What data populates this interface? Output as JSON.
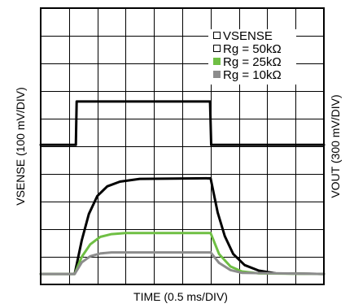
{
  "chart_data": {
    "type": "line",
    "xlabel": "TIME (0.5 ms/DIV)",
    "ylabel_left": "VSENSE (100 mV/DIV)",
    "ylabel_right": "VOUT (300 mV/DIV)",
    "x_divisions": 10,
    "y_divisions": 10,
    "xlim": [
      0,
      10
    ],
    "ylim": [
      0,
      10
    ],
    "grid": true,
    "legend_position": "top-right",
    "series": [
      {
        "name": "VSENSE",
        "color": "#000000",
        "width": 3,
        "legend_marker": "hollow",
        "x": [
          0,
          1.24,
          1.27,
          5.98,
          6.02,
          10
        ],
        "y": [
          5.05,
          5.05,
          6.62,
          6.62,
          5.05,
          5.05
        ]
      },
      {
        "name": "Rg = 50kΩ",
        "color": "#000000",
        "width": 3,
        "legend_marker": "hollow",
        "x": [
          0,
          1.2,
          1.45,
          1.7,
          2.0,
          2.35,
          2.8,
          3.5,
          6.0,
          6.25,
          6.5,
          6.8,
          7.2,
          7.7,
          8.3,
          10
        ],
        "y": [
          0.38,
          0.38,
          1.6,
          2.55,
          3.2,
          3.55,
          3.72,
          3.82,
          3.84,
          2.6,
          1.75,
          1.1,
          0.7,
          0.5,
          0.4,
          0.38
        ]
      },
      {
        "name": "Rg = 25kΩ",
        "color": "#6fbf44",
        "width": 3,
        "legend_marker": "filled",
        "x": [
          0,
          1.2,
          1.45,
          1.75,
          2.1,
          2.5,
          3.0,
          6.0,
          6.3,
          6.7,
          7.1,
          7.7,
          10
        ],
        "y": [
          0.38,
          0.38,
          1.0,
          1.45,
          1.72,
          1.82,
          1.86,
          1.86,
          1.1,
          0.65,
          0.47,
          0.4,
          0.38
        ]
      },
      {
        "name": "Rg = 10kΩ",
        "color": "#8c8c8c",
        "width": 3,
        "legend_marker": "filled",
        "x": [
          0,
          1.2,
          1.45,
          1.75,
          2.1,
          2.5,
          6.0,
          6.3,
          6.7,
          7.1,
          10
        ],
        "y": [
          0.38,
          0.38,
          0.8,
          1.02,
          1.12,
          1.16,
          1.16,
          0.78,
          0.52,
          0.42,
          0.38
        ]
      }
    ]
  }
}
